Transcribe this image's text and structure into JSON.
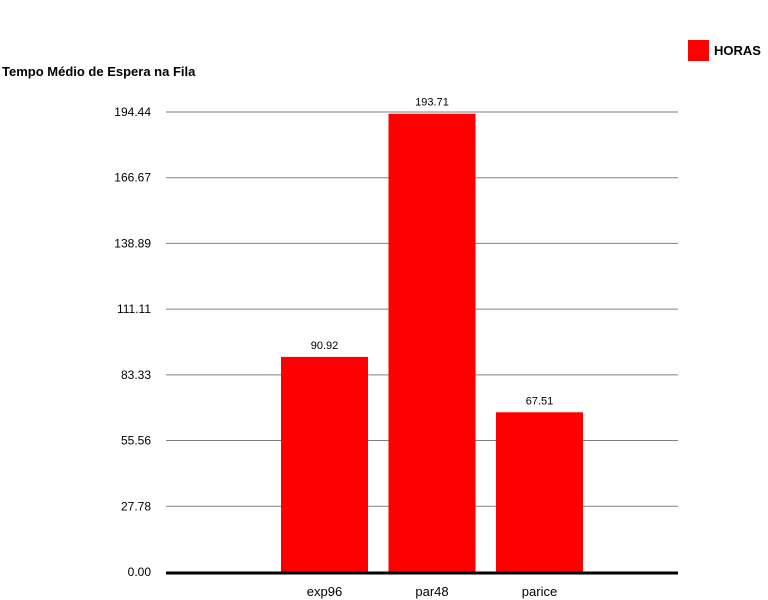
{
  "chart_data": {
    "type": "bar",
    "title": "Tempo Médio de Espera na Fila",
    "xlabel": "",
    "ylabel": "",
    "categories": [
      "exp96",
      "par48",
      "parice"
    ],
    "series": [
      {
        "name": "HORAS",
        "values": [
          90.92,
          193.71,
          67.51
        ],
        "color": "#ff0000"
      }
    ],
    "ylim": [
      0,
      194.44
    ],
    "yticks": [
      "0.00",
      "27.78",
      "55.56",
      "83.33",
      "111.11",
      "138.89",
      "166.67",
      "194.44"
    ],
    "grid": true,
    "legend_position": "top-right"
  }
}
